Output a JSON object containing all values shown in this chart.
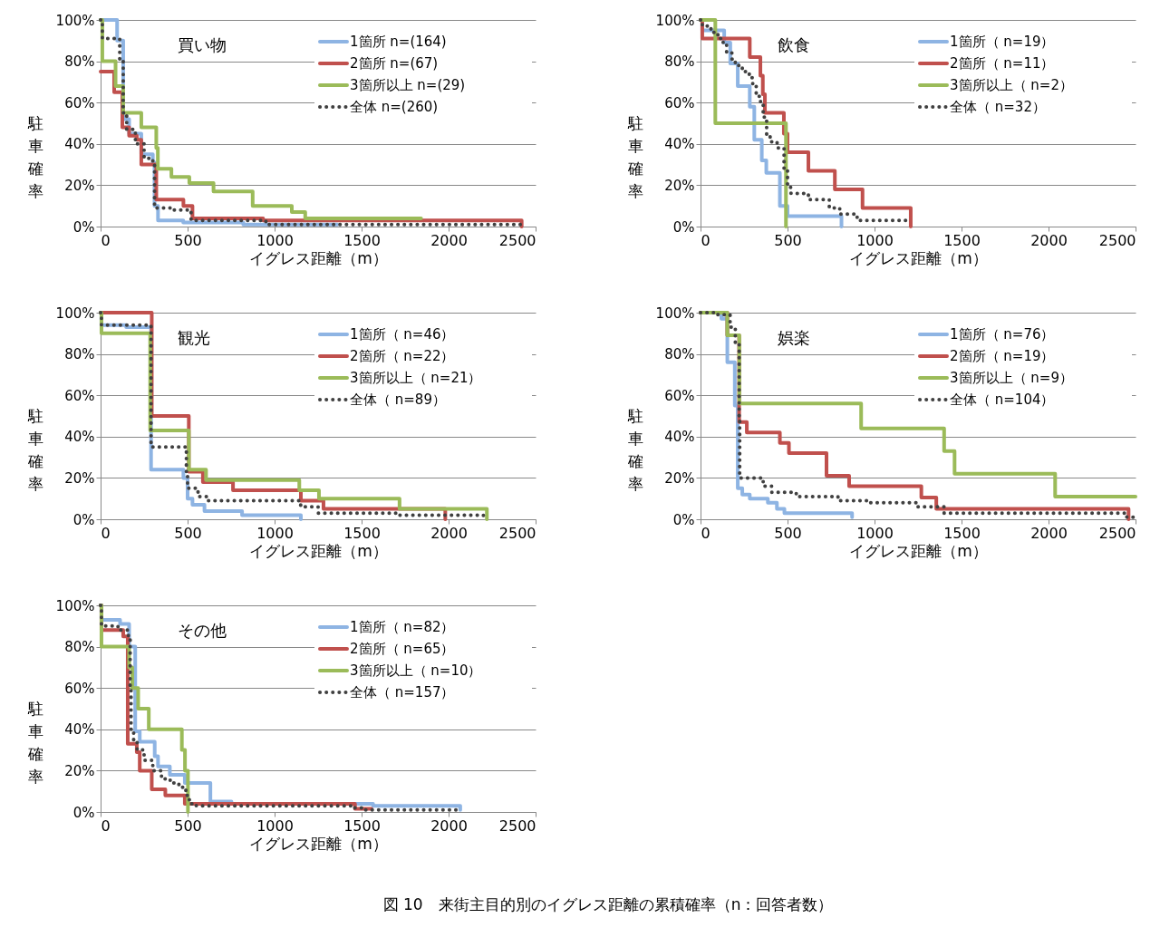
{
  "chart_data": [
    {
      "type": "step",
      "title": "買い物",
      "xlabel": "イグレス距離（m）",
      "ylabel": "駐車確率",
      "xlim": [
        0,
        2500
      ],
      "xticks": [
        0,
        500,
        1000,
        1500,
        2000,
        2500
      ],
      "ylim": [
        0,
        100
      ],
      "yticks": [
        {
          "value": 0,
          "label": "0%"
        },
        {
          "value": 20,
          "label": "20%"
        },
        {
          "value": 40,
          "label": "40%"
        },
        {
          "value": 60,
          "label": "60%"
        },
        {
          "value": 80,
          "label": "80%"
        },
        {
          "value": 100,
          "label": "100%"
        }
      ],
      "grid": "y",
      "legend": "top right",
      "series": [
        {
          "name": "1箇所 n=(164)",
          "color": "#8eb4e3",
          "line_style": "solid",
          "x": [
            0,
            95,
            130,
            164,
            234,
            300,
            310,
            330,
            475,
            820,
            1360
          ],
          "values": [
            100,
            90,
            52,
            45,
            35,
            31,
            10,
            3,
            2,
            1,
            1
          ]
        },
        {
          "name": "2箇所 n=(67)",
          "color": "#c0504d",
          "line_style": "solid",
          "x": [
            0,
            78,
            125,
            164,
            208,
            234,
            320,
            476,
            528,
            934,
            2396,
            2420
          ],
          "values": [
            75,
            65,
            48,
            44,
            42,
            30,
            13,
            10,
            4,
            3,
            3,
            0
          ]
        },
        {
          "name": "3箇所以上 n=(29)",
          "color": "#9bbb59",
          "line_style": "solid",
          "x": [
            0,
            10,
            86,
            130,
            234,
            320,
            329,
            407,
            510,
            649,
            874,
            1099,
            1176,
            1842
          ],
          "values": [
            100,
            80,
            68,
            55,
            48,
            38,
            28,
            24,
            21,
            17,
            10,
            7,
            4,
            4
          ]
        },
        {
          "name": "全体 n=(260)",
          "color": "#404040",
          "line_style": "dotted",
          "x": [
            0,
            10,
            110,
            130,
            150,
            200,
            250,
            300,
            310,
            420,
            520,
            950,
            2430
          ],
          "values": [
            100,
            91,
            80,
            55,
            47,
            40,
            33,
            30,
            9,
            8,
            3,
            1,
            1
          ]
        }
      ]
    },
    {
      "type": "step",
      "title": "飲食",
      "xlabel": "イグレス距離（m）",
      "ylabel": "駐車確率",
      "xlim": [
        0,
        2500
      ],
      "xticks": [
        0,
        500,
        1000,
        1500,
        2000,
        2500
      ],
      "ylim": [
        0,
        100
      ],
      "yticks": [
        {
          "value": 0,
          "label": "0%"
        },
        {
          "value": 20,
          "label": "20%"
        },
        {
          "value": 40,
          "label": "40%"
        },
        {
          "value": 60,
          "label": "60%"
        },
        {
          "value": 80,
          "label": "80%"
        },
        {
          "value": 100,
          "label": "100%"
        }
      ],
      "grid": "y",
      "legend": "top right",
      "series": [
        {
          "name": "1箇所（ n=19）",
          "color": "#8eb4e3",
          "line_style": "solid",
          "x": [
            0,
            10,
            136,
            171,
            214,
            283,
            309,
            352,
            378,
            456,
            500,
            810
          ],
          "values": [
            100,
            95,
            89,
            79,
            68,
            58,
            42,
            32,
            26,
            10,
            5,
            0
          ]
        },
        {
          "name": "2箇所（ n=11）",
          "color": "#c0504d",
          "line_style": "solid",
          "x": [
            0,
            10,
            283,
            344,
            358,
            370,
            479,
            500,
            620,
            772,
            931,
            1208
          ],
          "values": [
            100,
            91,
            82,
            73,
            64,
            55,
            45,
            36,
            27,
            18,
            9,
            0
          ]
        },
        {
          "name": "3箇所以上（ n=2）",
          "color": "#9bbb59",
          "line_style": "solid",
          "x": [
            0,
            85,
            491
          ],
          "values": [
            100,
            50,
            0
          ]
        },
        {
          "name": "全体（ n=32）",
          "color": "#404040",
          "line_style": "dotted",
          "x": [
            0,
            10,
            60,
            100,
            130,
            150,
            180,
            200,
            240,
            280,
            300,
            320,
            345,
            360,
            380,
            400,
            440,
            480,
            500,
            520,
            620,
            740,
            800,
            900,
            1200
          ],
          "values": [
            100,
            97,
            94,
            91,
            88,
            84,
            81,
            78,
            75,
            72,
            69,
            63,
            59,
            53,
            44,
            41,
            38,
            28,
            19,
            16,
            13,
            9,
            6,
            3,
            3
          ]
        }
      ]
    },
    {
      "type": "step",
      "title": "観光",
      "xlabel": "イグレス距離（m）",
      "ylabel": "駐車確率",
      "xlim": [
        0,
        2500
      ],
      "xticks": [
        0,
        500,
        1000,
        1500,
        2000,
        2500
      ],
      "ylim": [
        0,
        100
      ],
      "yticks": [
        {
          "value": 0,
          "label": "0%"
        },
        {
          "value": 20,
          "label": "20%"
        },
        {
          "value": 40,
          "label": "40%"
        },
        {
          "value": 60,
          "label": "60%"
        },
        {
          "value": 80,
          "label": "80%"
        },
        {
          "value": 100,
          "label": "100%"
        }
      ],
      "grid": "y",
      "legend": "top right",
      "series": [
        {
          "name": "1箇所（ n=46）",
          "color": "#8eb4e3",
          "line_style": "solid",
          "x": [
            0,
            5,
            147,
            290,
            476,
            500,
            528,
            597,
            813,
            1151
          ],
          "values": [
            100,
            94,
            93,
            24,
            20,
            10,
            7,
            4,
            2,
            0
          ]
        },
        {
          "name": "2箇所（ n=22）",
          "color": "#c0504d",
          "line_style": "solid",
          "x": [
            0,
            294,
            507,
            588,
            761,
            1151,
            1281,
            1981
          ],
          "values": [
            100,
            50,
            23,
            18,
            14,
            9,
            5,
            0
          ]
        },
        {
          "name": "3箇所以上（ n=21）",
          "color": "#9bbb59",
          "line_style": "solid",
          "x": [
            0,
            5,
            285,
            507,
            606,
            1142,
            1255,
            1718,
            2220
          ],
          "values": [
            100,
            90,
            43,
            24,
            19,
            14,
            10,
            5,
            0
          ]
        },
        {
          "name": "全体（ n=89）",
          "color": "#404040",
          "line_style": "dotted",
          "x": [
            0,
            5,
            290,
            493,
            500,
            560,
            620,
            1150,
            1250,
            1700,
            2200
          ],
          "values": [
            100,
            94,
            35,
            22,
            15,
            11,
            9,
            6,
            3,
            2,
            1
          ]
        }
      ]
    },
    {
      "type": "step",
      "title": "娯楽",
      "xlabel": "イグレス距離（m）",
      "ylabel": "駐車確率",
      "xlim": [
        0,
        2500
      ],
      "xticks": [
        0,
        500,
        1000,
        1500,
        2000,
        2500
      ],
      "ylim": [
        0,
        100
      ],
      "yticks": [
        {
          "value": 0,
          "label": "0%"
        },
        {
          "value": 20,
          "label": "20%"
        },
        {
          "value": 40,
          "label": "40%"
        },
        {
          "value": 60,
          "label": "60%"
        },
        {
          "value": 80,
          "label": "80%"
        },
        {
          "value": 100,
          "label": "100%"
        }
      ],
      "grid": "y",
      "legend": "top right",
      "series": [
        {
          "name": "1箇所（ n=76）",
          "color": "#8eb4e3",
          "line_style": "solid",
          "x": [
            0,
            120,
            154,
            197,
            214,
            240,
            283,
            387,
            439,
            482,
            871
          ],
          "values": [
            100,
            97,
            76,
            55,
            15,
            12,
            10,
            8,
            5,
            3,
            1
          ]
        },
        {
          "name": "2箇所（ n=19）",
          "color": "#c0504d",
          "line_style": "solid",
          "x": [
            0,
            154,
            222,
            266,
            456,
            508,
            724,
            854,
            1269,
            1355,
            2452,
            2460
          ],
          "values": [
            100,
            89,
            47,
            42,
            37,
            32,
            21,
            16,
            10.5,
            5,
            5,
            0
          ]
        },
        {
          "name": "3箇所以上（ n=9）",
          "color": "#9bbb59",
          "line_style": "solid",
          "x": [
            0,
            154,
            223,
            923,
            1400,
            1460,
            2038,
            2500
          ],
          "values": [
            100,
            89,
            56,
            44,
            33,
            22,
            11,
            11
          ]
        },
        {
          "name": "全体（ n=104）",
          "color": "#404040",
          "line_style": "dotted",
          "x": [
            0,
            100,
            170,
            200,
            222,
            225,
            360,
            410,
            550,
            790,
            966,
            1243,
            1400,
            2450,
            2500
          ],
          "values": [
            100,
            99,
            93,
            85,
            50,
            20,
            16,
            13,
            11,
            9,
            8,
            6,
            3,
            1,
            1
          ]
        }
      ]
    },
    {
      "type": "step",
      "title": "その他",
      "xlabel": "イグレス距離（m）",
      "ylabel": "駐車確率",
      "xlim": [
        0,
        2500
      ],
      "xticks": [
        0,
        500,
        1000,
        1500,
        2000,
        2500
      ],
      "ylim": [
        0,
        100
      ],
      "yticks": [
        {
          "value": 0,
          "label": "0%"
        },
        {
          "value": 20,
          "label": "20%"
        },
        {
          "value": 40,
          "label": "40%"
        },
        {
          "value": 60,
          "label": "60%"
        },
        {
          "value": 80,
          "label": "80%"
        },
        {
          "value": 100,
          "label": "100%"
        }
      ],
      "grid": "y",
      "legend": "top right",
      "annotations": [
        "図 10　来街主目的別のイグレス距離の累積確率（n：回答者数）"
      ],
      "series": [
        {
          "name": "1箇所（ n=82）",
          "color": "#8eb4e3",
          "line_style": "solid",
          "x": [
            0,
            5,
            112,
            164,
            199,
            225,
            311,
            330,
            398,
            484,
            631,
            752,
            1566,
            2067
          ],
          "values": [
            100,
            93,
            91,
            80,
            39,
            34,
            27,
            22,
            18,
            14,
            5,
            4,
            3,
            1
          ]
        },
        {
          "name": "2箇所（ n=65）",
          "color": "#c0504d",
          "line_style": "solid",
          "x": [
            0,
            5,
            130,
            156,
            208,
            225,
            294,
            372,
            484,
            528,
            1462,
            1557
          ],
          "values": [
            100,
            88,
            85,
            33,
            29,
            20,
            11,
            8,
            4,
            4,
            1.5,
            1.5
          ]
        },
        {
          "name": "3箇所以上（ n=10）",
          "color": "#9bbb59",
          "line_style": "solid",
          "x": [
            0,
            5,
            164,
            182,
            216,
            277,
            467,
            485,
            502
          ],
          "values": [
            100,
            80,
            70,
            60,
            50,
            40,
            30,
            20,
            0
          ]
        },
        {
          "name": "全体（ n=157）",
          "color": "#404040",
          "line_style": "dotted",
          "x": [
            0,
            5,
            100,
            160,
            170,
            175,
            190,
            210,
            250,
            300,
            350,
            400,
            450,
            490,
            510,
            550,
            1450,
            1500,
            2050
          ],
          "values": [
            100,
            90,
            88,
            85,
            60,
            40,
            35,
            30,
            25,
            20,
            16,
            14,
            12,
            8,
            4,
            3,
            2,
            1,
            1
          ]
        }
      ]
    }
  ]
}
